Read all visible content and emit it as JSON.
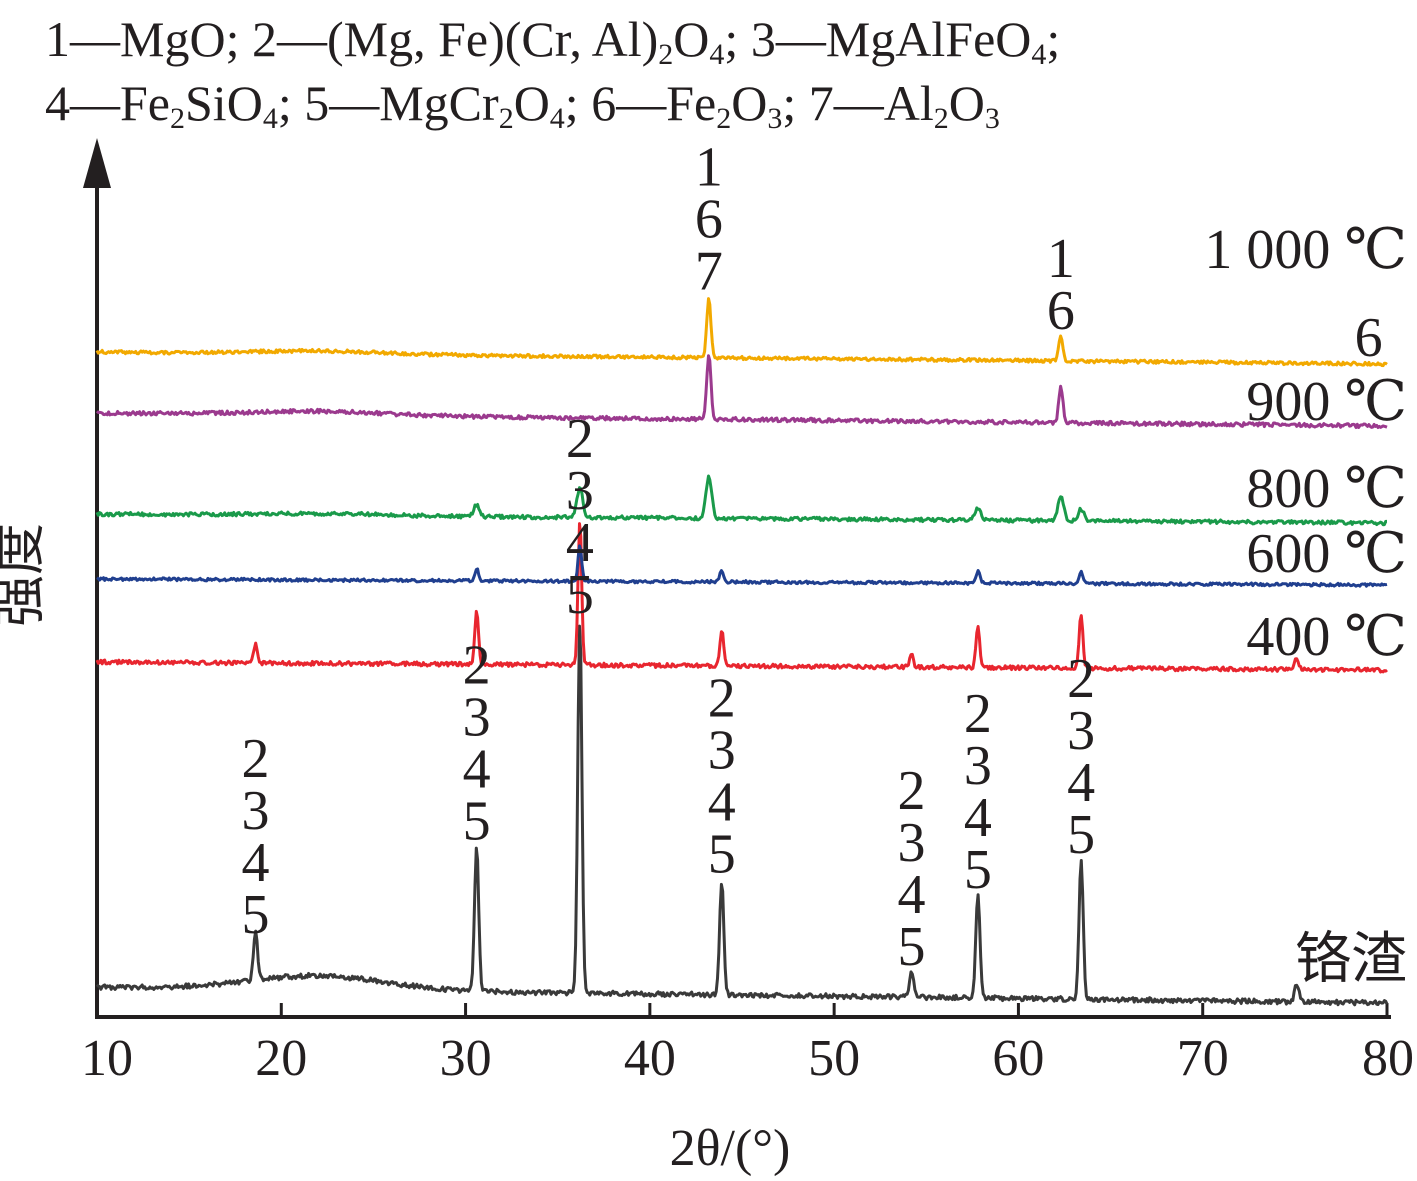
{
  "legend": {
    "line1": [
      {
        "num": "1",
        "dash": "—",
        "formula": [
          {
            "t": "MgO"
          }
        ],
        "sep": "; "
      },
      {
        "num": "2",
        "dash": "—",
        "formula": [
          {
            "t": "(Mg, Fe)(Cr, Al)"
          },
          {
            "t": "2",
            "sub": true
          },
          {
            "t": "O"
          },
          {
            "t": "4",
            "sub": true
          }
        ],
        "sep": "; "
      },
      {
        "num": "3",
        "dash": "—",
        "formula": [
          {
            "t": "MgAlFeO"
          },
          {
            "t": "4",
            "sub": true
          }
        ],
        "sep": ";"
      }
    ],
    "line2": [
      {
        "num": "4",
        "dash": "—",
        "formula": [
          {
            "t": "Fe"
          },
          {
            "t": "2",
            "sub": true
          },
          {
            "t": "SiO"
          },
          {
            "t": "4",
            "sub": true
          }
        ],
        "sep": "; "
      },
      {
        "num": "5",
        "dash": "—",
        "formula": [
          {
            "t": "MgCr"
          },
          {
            "t": "2",
            "sub": true
          },
          {
            "t": "O"
          },
          {
            "t": "4",
            "sub": true
          }
        ],
        "sep": "; "
      },
      {
        "num": "6",
        "dash": "—",
        "formula": [
          {
            "t": "Fe"
          },
          {
            "t": "2",
            "sub": true
          },
          {
            "t": "O"
          },
          {
            "t": "3",
            "sub": true
          }
        ],
        "sep": "; "
      },
      {
        "num": "7",
        "dash": "—",
        "formula": [
          {
            "t": "Al"
          },
          {
            "t": "2",
            "sub": true
          },
          {
            "t": "O"
          },
          {
            "t": "3",
            "sub": true
          }
        ],
        "sep": ""
      }
    ]
  },
  "chart_data": {
    "type": "line",
    "title": "",
    "xlabel": "2θ/(°)",
    "ylabel": "强度",
    "xlim": [
      10,
      80
    ],
    "x_ticks": [
      10,
      20,
      30,
      40,
      50,
      60,
      70,
      80
    ],
    "y_ticks": [],
    "grid": false,
    "series": [
      {
        "name": "铬渣",
        "color": "#3a3a3a",
        "peaks": [
          {
            "x": 18.6,
            "height": 0.08,
            "label": [
              "2",
              "3",
              "4",
              "5"
            ]
          },
          {
            "x": 30.6,
            "height": 0.24,
            "label": [
              "2",
              "3",
              "4",
              "5"
            ]
          },
          {
            "x": 36.2,
            "height": 0.62,
            "label": [
              "2",
              "3",
              "4",
              "5"
            ]
          },
          {
            "x": 43.9,
            "height": 0.19,
            "label": [
              "2",
              "3",
              "4",
              "5"
            ]
          },
          {
            "x": 54.2,
            "height": 0.04,
            "label": [
              "2",
              "3",
              "4",
              "5"
            ]
          },
          {
            "x": 57.8,
            "height": 0.17,
            "label": [
              "2",
              "3",
              "4",
              "5"
            ]
          },
          {
            "x": 63.4,
            "height": 0.23,
            "label": [
              "2",
              "3",
              "4",
              "5"
            ]
          },
          {
            "x": 75.1,
            "height": 0.03
          }
        ]
      },
      {
        "name": "400 ℃",
        "color": "#e8262f",
        "peaks": [
          {
            "x": 18.6,
            "height": 0.03
          },
          {
            "x": 30.6,
            "height": 0.09
          },
          {
            "x": 36.2,
            "height": 0.24
          },
          {
            "x": 43.9,
            "height": 0.06
          },
          {
            "x": 54.2,
            "height": 0.02
          },
          {
            "x": 57.8,
            "height": 0.07
          },
          {
            "x": 63.4,
            "height": 0.09
          },
          {
            "x": 75.1,
            "height": 0.02
          }
        ]
      },
      {
        "name": "600 ℃",
        "color": "#203f8f",
        "peaks": [
          {
            "x": 30.6,
            "height": 0.02
          },
          {
            "x": 36.2,
            "height": 0.06
          },
          {
            "x": 43.9,
            "height": 0.02
          },
          {
            "x": 57.8,
            "height": 0.02
          },
          {
            "x": 63.4,
            "height": 0.02
          }
        ]
      },
      {
        "name": "800 ℃",
        "color": "#1a9a4a",
        "peaks": [
          {
            "x": 30.6,
            "height": 0.02
          },
          {
            "x": 36.2,
            "height": 0.05
          },
          {
            "x": 43.2,
            "height": 0.07
          },
          {
            "x": 57.8,
            "height": 0.02
          },
          {
            "x": 62.3,
            "height": 0.04
          },
          {
            "x": 63.4,
            "height": 0.02
          }
        ]
      },
      {
        "name": "900 ℃",
        "color": "#9b3a8e",
        "peaks": [
          {
            "x": 43.2,
            "height": 0.11
          },
          {
            "x": 62.3,
            "height": 0.06
          }
        ]
      },
      {
        "name": "1 000 ℃",
        "color": "#f2a900",
        "peaks": [
          {
            "x": 43.2,
            "height": 0.1,
            "label": [
              "1",
              "6",
              "7"
            ]
          },
          {
            "x": 62.3,
            "height": 0.04,
            "label": [
              "1",
              "6"
            ]
          },
          {
            "x": 79.0,
            "height": 0.0,
            "label": [
              "6"
            ]
          }
        ]
      }
    ]
  }
}
